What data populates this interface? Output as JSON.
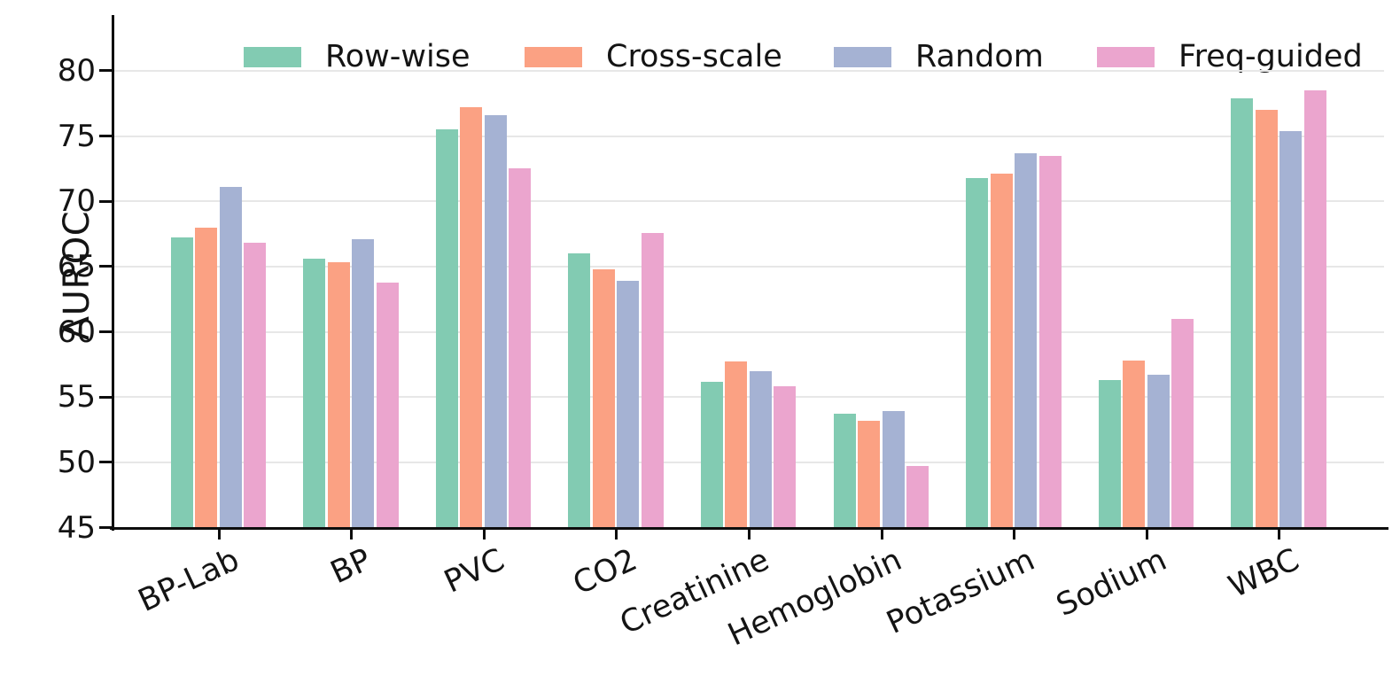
{
  "chart_data": {
    "type": "bar",
    "title": "",
    "xlabel": "",
    "ylabel": "AUROC",
    "ylim": [
      45,
      84
    ],
    "yticks": [
      45,
      50,
      55,
      60,
      65,
      70,
      75,
      80
    ],
    "grid": true,
    "legend_position": "top-horizontal",
    "categories": [
      "BP-Lab",
      "BP",
      "PVC",
      "CO2",
      "Creatinine",
      "Hemoglobin",
      "Potassium",
      "Sodium",
      "WBC"
    ],
    "series": [
      {
        "name": "Row-wise",
        "color": "#82CBB2",
        "values": [
          67.2,
          65.6,
          75.5,
          66.0,
          56.2,
          53.7,
          71.8,
          56.3,
          77.9
        ]
      },
      {
        "name": "Cross-scale",
        "color": "#FBA183",
        "values": [
          68.0,
          65.3,
          77.2,
          64.8,
          57.7,
          53.2,
          72.1,
          57.8,
          77.0
        ]
      },
      {
        "name": "Random",
        "color": "#A5B2D3",
        "values": [
          71.1,
          67.1,
          76.6,
          63.9,
          57.0,
          53.9,
          73.7,
          56.7,
          75.4
        ]
      },
      {
        "name": "Freq-guided",
        "color": "#EBA5CE",
        "values": [
          66.8,
          63.8,
          72.5,
          67.6,
          55.8,
          49.7,
          73.5,
          61.0,
          78.5
        ]
      }
    ],
    "axis_color": "#0d0d0d",
    "gridline_color": "#e7e7e7",
    "background_color": "#ffffff"
  }
}
